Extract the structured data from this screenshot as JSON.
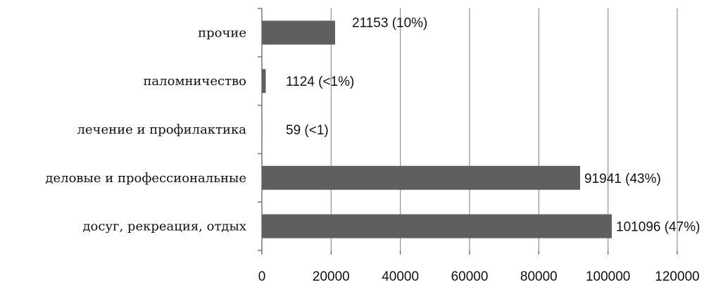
{
  "chart_data": {
    "type": "bar",
    "orientation": "horizontal",
    "categories": [
      "досуг, рекреация, отдых",
      "деловые и профессиональные",
      "лечение и профилактика",
      "паломничество",
      "прочие"
    ],
    "values": [
      101096,
      91941,
      59,
      1124,
      21153
    ],
    "data_labels": [
      "101096 (47%)",
      "91941 (43%)",
      "59 (<1)",
      "1124 (<1%)",
      "21153 (10%)"
    ],
    "xlim": [
      0,
      120000
    ],
    "xticks": [
      "0",
      "20000",
      "40000",
      "60000",
      "80000",
      "100000",
      "120000"
    ],
    "grid": true,
    "bar_color": "#5f5f5f"
  }
}
